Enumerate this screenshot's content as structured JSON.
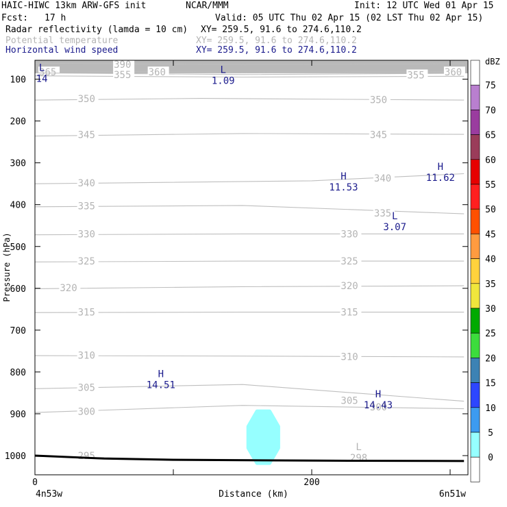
{
  "header": {
    "model": "HAIC-HIWC 13km ARW-GFS init",
    "org": "NCAR/MMM",
    "init": "Init: 12 UTC Wed 01 Apr 15",
    "fcst_label": "Fcst:",
    "fcst_value": "17 h",
    "valid": "Valid: 05 UTC Thu 02 Apr 15 (02 LST Thu 02 Apr 15)",
    "fields": [
      {
        "name": "Radar reflectivity (lamda = 10 cm)",
        "xy": "XY= 259.5, 91.6 to 274.6,110.2",
        "color": "#000000"
      },
      {
        "name": "Potential temperature",
        "xy": "XY= 259.5, 91.6 to 274.6,110.2",
        "color": "#b4b4b4"
      },
      {
        "name": "Horizontal wind speed",
        "xy": "XY= 259.5, 91.6 to 274.6,110.2",
        "color": "#1a1a8c"
      }
    ]
  },
  "chart_data": {
    "type": "cross-section",
    "xlabel": "Distance (km)",
    "ylabel": "Pressure (hPa)",
    "xlim": [
      0,
      300
    ],
    "ylim": [
      1050,
      50
    ],
    "x_ticks": [
      {
        "value": 0,
        "label": "0"
      },
      {
        "value": 100,
        "label": ""
      },
      {
        "value": 200,
        "label": "200"
      },
      {
        "value": 300,
        "label": ""
      }
    ],
    "y_ticks": [
      100,
      200,
      300,
      400,
      500,
      600,
      700,
      800,
      900,
      1000
    ],
    "x_endpoint_labels": [
      "4n53w",
      "6n51w"
    ],
    "isentropes": [
      {
        "theta": "390",
        "label_points": [
          [
            57,
            65
          ]
        ],
        "points": [
          [
            0,
            62
          ],
          [
            150,
            65
          ],
          [
            310,
            63
          ]
        ]
      },
      {
        "theta": "365",
        "label_points": [
          [
            3,
            83
          ]
        ],
        "points": [
          [
            0,
            80
          ],
          [
            150,
            84
          ],
          [
            310,
            82
          ]
        ]
      },
      {
        "theta": "360",
        "label_points": [
          [
            82,
            83
          ],
          [
            296,
            83
          ]
        ],
        "points": [
          [
            0,
            85
          ],
          [
            150,
            89
          ],
          [
            310,
            86
          ]
        ]
      },
      {
        "theta": "355",
        "label_points": [
          [
            57,
            89
          ],
          [
            269,
            90
          ]
        ],
        "points": [
          [
            0,
            92
          ],
          [
            150,
            95
          ],
          [
            310,
            93
          ]
        ]
      },
      {
        "theta": "350",
        "label_points": [
          [
            31,
            147
          ],
          [
            242,
            149
          ]
        ],
        "points": [
          [
            0,
            150
          ],
          [
            120,
            146
          ],
          [
            310,
            150
          ]
        ]
      },
      {
        "theta": "345",
        "label_points": [
          [
            31,
            233
          ],
          [
            242,
            233
          ]
        ],
        "points": [
          [
            0,
            236
          ],
          [
            150,
            230
          ],
          [
            310,
            232
          ]
        ]
      },
      {
        "theta": "340",
        "label_points": [
          [
            31,
            348
          ],
          [
            245,
            337
          ]
        ],
        "points": [
          [
            0,
            350
          ],
          [
            200,
            343
          ],
          [
            310,
            326
          ]
        ]
      },
      {
        "theta": "335",
        "label_points": [
          [
            31,
            403
          ],
          [
            245,
            420
          ]
        ],
        "points": [
          [
            0,
            405
          ],
          [
            150,
            402
          ],
          [
            310,
            422
          ]
        ]
      },
      {
        "theta": "330",
        "label_points": [
          [
            31,
            470
          ],
          [
            221,
            470
          ]
        ],
        "points": [
          [
            0,
            472
          ],
          [
            150,
            470
          ],
          [
            310,
            470
          ]
        ]
      },
      {
        "theta": "325",
        "label_points": [
          [
            31,
            535
          ],
          [
            221,
            535
          ]
        ],
        "points": [
          [
            0,
            537
          ],
          [
            150,
            535
          ],
          [
            310,
            535
          ]
        ]
      },
      {
        "theta": "320",
        "label_points": [
          [
            18,
            599
          ],
          [
            221,
            594
          ]
        ],
        "points": [
          [
            0,
            601
          ],
          [
            150,
            596
          ],
          [
            310,
            594
          ]
        ]
      },
      {
        "theta": "315",
        "label_points": [
          [
            31,
            657
          ],
          [
            221,
            657
          ]
        ],
        "points": [
          [
            0,
            658
          ],
          [
            150,
            657
          ],
          [
            310,
            657
          ]
        ]
      },
      {
        "theta": "310",
        "label_points": [
          [
            31,
            760
          ],
          [
            221,
            763
          ]
        ],
        "points": [
          [
            0,
            761
          ],
          [
            150,
            762
          ],
          [
            310,
            764
          ]
        ]
      },
      {
        "theta": "305",
        "label_points": [
          [
            31,
            837
          ],
          [
            221,
            868
          ]
        ],
        "points": [
          [
            0,
            840
          ],
          [
            150,
            830
          ],
          [
            310,
            870
          ]
        ]
      },
      {
        "theta": "300",
        "label_points": [
          [
            31,
            894
          ],
          [
            242,
            884
          ]
        ],
        "points": [
          [
            0,
            897
          ],
          [
            150,
            880
          ],
          [
            310,
            888
          ]
        ]
      },
      {
        "theta": "295",
        "label_points": [
          [
            31,
            1000
          ]
        ],
        "points": [
          [
            0,
            1002
          ],
          [
            100,
            1008
          ],
          [
            310,
            1013
          ]
        ]
      }
    ],
    "wind_extrema": [
      {
        "type": "L",
        "value": "14",
        "x": 5,
        "y": 85
      },
      {
        "type": "L",
        "value": "1.09",
        "x": 136,
        "y": 90
      },
      {
        "type": "H",
        "value": "11.53",
        "x": 223,
        "y": 345
      },
      {
        "type": "H",
        "value": "11.62",
        "x": 293,
        "y": 322
      },
      {
        "type": "L",
        "value": "3.07",
        "x": 260,
        "y": 440
      },
      {
        "type": "H",
        "value": "14.51",
        "x": 91,
        "y": 817
      },
      {
        "type": "H",
        "value": "14.43",
        "x": 248,
        "y": 866
      }
    ],
    "theta_extrema": [
      {
        "type": "L",
        "value": "298",
        "x": 227,
        "y": 995
      }
    ],
    "reflectivity_cells": [
      {
        "dbz": 5,
        "color": "#96ffff",
        "center_x": 165,
        "center_p": 956,
        "radius_km": 11,
        "radius_hpa": 70
      }
    ],
    "ground_pressure": [
      [
        0,
        1000
      ],
      [
        50,
        1007
      ],
      [
        100,
        1010
      ],
      [
        200,
        1012
      ],
      [
        310,
        1013
      ]
    ]
  },
  "colorbar": {
    "unit": "dBZ",
    "levels": [
      {
        "value": "75",
        "color": "#ffffff"
      },
      {
        "value": "70",
        "color": "#b97fcf"
      },
      {
        "value": "65",
        "color": "#9a3c9f"
      },
      {
        "value": "60",
        "color": "#9a3c5a"
      },
      {
        "value": "55",
        "color": "#e60000"
      },
      {
        "value": "50",
        "color": "#ff1f1f"
      },
      {
        "value": "45",
        "color": "#ff5000"
      },
      {
        "value": "40",
        "color": "#ff9b40"
      },
      {
        "value": "35",
        "color": "#ffd23c"
      },
      {
        "value": "30",
        "color": "#f0e63c"
      },
      {
        "value": "25",
        "color": "#00aa00"
      },
      {
        "value": "20",
        "color": "#3cdc3c"
      },
      {
        "value": "15",
        "color": "#3c82b4"
      },
      {
        "value": "10",
        "color": "#2d46ff"
      },
      {
        "value": "5",
        "color": "#3c9bf0"
      },
      {
        "value": "0",
        "color": "#96ffff"
      },
      {
        "value": "",
        "color": "#ffffff"
      }
    ]
  }
}
